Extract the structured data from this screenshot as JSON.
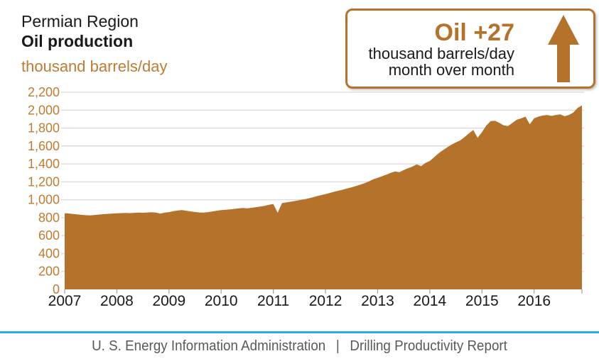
{
  "header": {
    "region": "Permian Region",
    "metric": "Oil production",
    "units": "thousand barrels/day"
  },
  "callout": {
    "headline": "Oil +27",
    "line1": "thousand barrels/day",
    "line2": "month over month",
    "arrow_icon": "up-arrow"
  },
  "footer": {
    "agency": "U. S. Energy Information Administration",
    "separator": "|",
    "report": "Drilling Productivity Report"
  },
  "colors": {
    "accent_brown": "#b5722b",
    "label_brown": "#bf7b32",
    "gridline_gray": "#d9d9d9",
    "tick_gray": "#a6a6a6",
    "text_black": "#1a1a1a",
    "footer_gray": "#58595b",
    "footer_line_blue": "#29abe2"
  },
  "chart_data": {
    "type": "area",
    "title": "Permian Region Oil production",
    "ylabel": "thousand barrels/day",
    "frequency": "monthly",
    "x_start": "2007-01",
    "x_end": "2016-12",
    "x_tick_labels": [
      "2007",
      "2008",
      "2009",
      "2010",
      "2011",
      "2012",
      "2013",
      "2014",
      "2015",
      "2016"
    ],
    "y_ticks": [
      0,
      200,
      400,
      600,
      800,
      1000,
      1200,
      1400,
      1600,
      1800,
      2000,
      2200
    ],
    "y_tick_labels": [
      "0",
      "200",
      "400",
      "600",
      "800",
      "1,000",
      "1,200",
      "1,400",
      "1,600",
      "1,800",
      "2,000",
      "2,200"
    ],
    "ylim": [
      0,
      2200
    ],
    "grid": "horizontal",
    "legend": "none",
    "series": [
      {
        "name": "Permian oil production (thousand barrels/day)",
        "values": [
          850,
          846,
          841,
          836,
          831,
          827,
          826,
          830,
          835,
          840,
          843,
          846,
          848,
          851,
          853,
          851,
          854,
          857,
          855,
          858,
          860,
          857,
          845,
          856,
          862,
          872,
          880,
          885,
          878,
          870,
          863,
          858,
          856,
          862,
          870,
          878,
          884,
          888,
          893,
          898,
          903,
          908,
          904,
          910,
          917,
          924,
          932,
          943,
          953,
          855,
          962,
          970,
          978,
          986,
          995,
          1004,
          1014,
          1026,
          1040,
          1052,
          1063,
          1076,
          1089,
          1101,
          1113,
          1126,
          1139,
          1153,
          1168,
          1185,
          1205,
          1228,
          1245,
          1262,
          1280,
          1300,
          1315,
          1308,
          1332,
          1352,
          1370,
          1395,
          1375,
          1410,
          1432,
          1475,
          1518,
          1552,
          1585,
          1615,
          1640,
          1662,
          1700,
          1740,
          1778,
          1690,
          1755,
          1828,
          1878,
          1882,
          1858,
          1830,
          1822,
          1858,
          1892,
          1908,
          1928,
          1842,
          1908,
          1928,
          1940,
          1946,
          1936,
          1946,
          1952,
          1932,
          1946,
          1972,
          2025,
          2052
        ]
      }
    ],
    "month_over_month_change": 27
  }
}
